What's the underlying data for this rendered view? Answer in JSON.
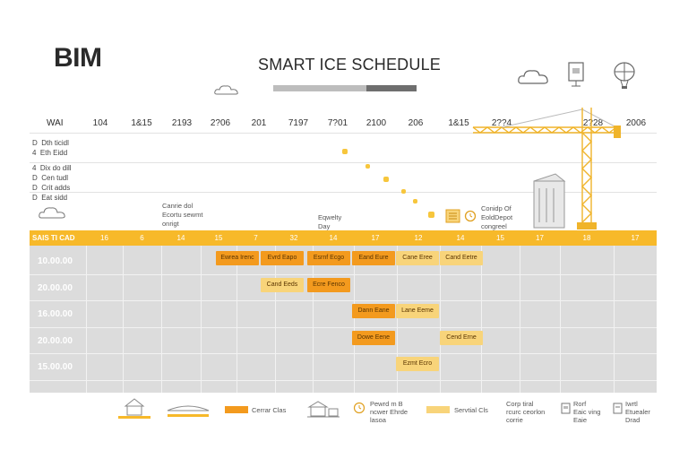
{
  "header": {
    "brand": "BIM",
    "title": "SMART ICE SCHEDULE",
    "progress_percent": 65,
    "icons": [
      "cloud-icon",
      "document-icon",
      "balloon-icon"
    ]
  },
  "timeline": {
    "corner_label": "WAI",
    "columns": [
      "104",
      "1&15",
      "2193",
      "2?06",
      "201",
      "7197",
      "7?01",
      "2100",
      "206",
      "1&15",
      "2??4",
      "2?28",
      "2006"
    ]
  },
  "left_legend": {
    "group1": [
      "D  Dth ticidl",
      "4  Eth Eidd"
    ],
    "group2": [
      "4  Dix do dill",
      "D  Cen tudl",
      "D  Crit adds",
      "D  Eat sidd"
    ]
  },
  "notes": {
    "note1": "Canrie dol\nEcortu sewmt\nonrigt",
    "note2": "Eqwelty\nDay",
    "note3": "Conidp Of\nEoldDepot\ncongreel"
  },
  "gantt": {
    "header_label": "SAIS TI CAD",
    "header_cells": [
      "16",
      "6",
      "14",
      "15",
      "7",
      "32",
      "14",
      "17",
      "12",
      "14",
      "15",
      "17",
      "18",
      "17"
    ],
    "rows": [
      "10.00.00",
      "20.00.00",
      "16.00.00",
      "20.00.00",
      "15.00.00"
    ],
    "tasks": [
      {
        "label": "Ewrea Irenc",
        "row": 0,
        "col": 0,
        "color": "#f39a1e"
      },
      {
        "label": "Evrd Eapo",
        "row": 0,
        "col": 1,
        "color": "#f39a1e"
      },
      {
        "label": "Esrnf Ecgo",
        "row": 0,
        "col": 2,
        "color": "#f39a1e"
      },
      {
        "label": "Eand Eure",
        "row": 0,
        "col": 3,
        "color": "#f39a1e"
      },
      {
        "label": "Cane Eree",
        "row": 0,
        "col": 4,
        "color": "#f8d47a"
      },
      {
        "label": "Cand Eetre",
        "row": 0,
        "col": 5,
        "color": "#f8d47a"
      },
      {
        "label": "Cand Eeds",
        "row": 1,
        "col": 1,
        "color": "#f8d47a"
      },
      {
        "label": "Ecre Fenco",
        "row": 1,
        "col": 2,
        "color": "#f39a1e"
      },
      {
        "label": "Dann Eane",
        "row": 2,
        "col": 3,
        "color": "#f39a1e"
      },
      {
        "label": "Lane Eeme",
        "row": 2,
        "col": 4,
        "color": "#f8d47a"
      },
      {
        "label": "Dowe Eene",
        "row": 3,
        "col": 3,
        "color": "#f39a1e"
      },
      {
        "label": "Cend Erne",
        "row": 3,
        "col": 5,
        "color": "#f8d47a"
      },
      {
        "label": "Ezmt Ecro",
        "row": 4,
        "col": 4,
        "color": "#f8d47a"
      }
    ]
  },
  "legend": {
    "item1": "Cerrar Clas",
    "item2": "Pewrd m B\nncwer Ehrde\nlasoa",
    "item3": "Servtial Cls",
    "item4": "Corp tiral\nrcurc ceorlon\ncorrie",
    "item5": "Rorf\nEaic ving\nEaie",
    "item6": "Iwrtl\nEtuealer\nDrad"
  },
  "colors": {
    "accent": "#f7b92a",
    "orange": "#f39a1e",
    "light_yellow": "#f8d47a",
    "grid": "#dcdcdc"
  }
}
